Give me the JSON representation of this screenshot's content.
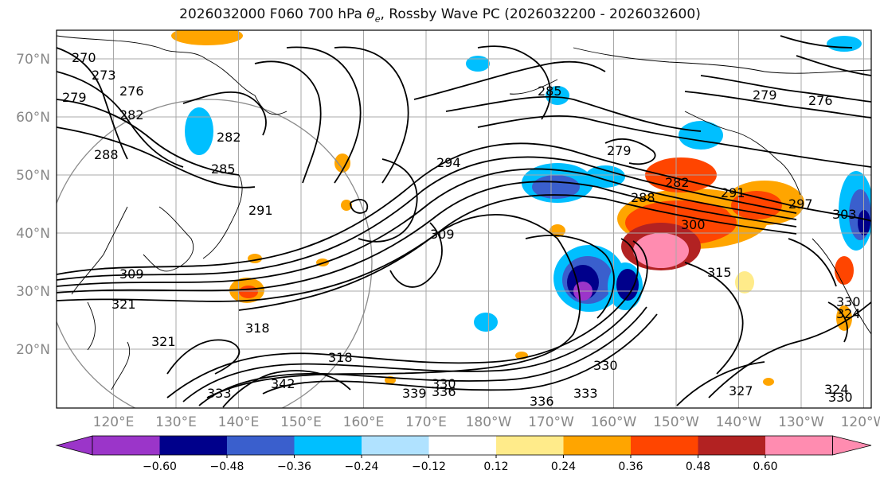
{
  "title": {
    "run": "2026032000 F060 700 hPa ",
    "symbol": "θ",
    "subscript": "e",
    "rest": ", Rossby Wave PC (2026032200 - 2026032600)"
  },
  "lat_labels": [
    "70°N",
    "60°N",
    "50°N",
    "40°N",
    "30°N",
    "20°N"
  ],
  "lon_labels": [
    "120°E",
    "130°E",
    "140°E",
    "150°E",
    "160°E",
    "170°E",
    "180°W",
    "170°W",
    "160°W",
    "150°W",
    "140°W",
    "130°W",
    "120°W"
  ],
  "contour_labels": [
    "270",
    "273",
    "276",
    "279",
    "282",
    "282",
    "285",
    "288",
    "294",
    "309",
    "309",
    "318",
    "321",
    "321",
    "318",
    "330",
    "336",
    "339",
    "342",
    "333",
    "336",
    "333",
    "330",
    "315",
    "300",
    "297",
    "291",
    "288",
    "282",
    "279",
    "279",
    "276",
    "327",
    "330",
    "324",
    "303",
    "285",
    "324",
    "291",
    "330"
  ],
  "colorbar": {
    "ticks": [
      "−0.60",
      "−0.48",
      "−0.36",
      "−0.24",
      "−0.12",
      "0.12",
      "0.24",
      "0.36",
      "0.48",
      "0.60"
    ],
    "colors": [
      "#9b35c9",
      "#00008b",
      "#3a5fcd",
      "#00bfff",
      "#b0e2ff",
      "#ffffff",
      "#ffeb8a",
      "#ffa500",
      "#ff4500",
      "#b22222",
      "#ff8cb0"
    ]
  }
}
